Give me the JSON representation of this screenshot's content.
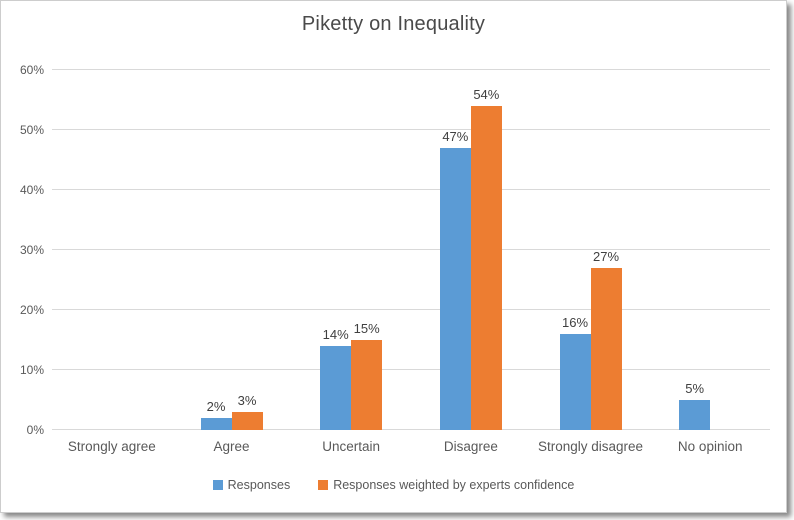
{
  "chart_data": {
    "type": "bar",
    "title": "Piketty on Inequality",
    "categories": [
      "Strongly agree",
      "Agree",
      "Uncertain",
      "Disagree",
      "Strongly disagree",
      "No opinion"
    ],
    "series": [
      {
        "name": "Responses",
        "color": "#5B9BD5",
        "values": [
          null,
          2,
          14,
          47,
          16,
          5
        ],
        "data_labels": [
          null,
          "2%",
          "14%",
          "47%",
          "16%",
          "5%"
        ]
      },
      {
        "name": "Responses weighted by experts confidence",
        "color": "#ED7D31",
        "values": [
          null,
          3,
          15,
          54,
          27,
          null
        ],
        "data_labels": [
          null,
          "3%",
          "15%",
          "54%",
          "27%",
          null
        ]
      }
    ],
    "y_axis": {
      "max": 60,
      "min": 0,
      "unit": "%",
      "ticks": [
        {
          "label": "0%",
          "value": 0
        },
        {
          "label": "10%",
          "value": 10
        },
        {
          "label": "20%",
          "value": 20
        },
        {
          "label": "30%",
          "value": 30
        },
        {
          "label": "40%",
          "value": 40
        },
        {
          "label": "50%",
          "value": 50
        },
        {
          "label": "60%",
          "value": 60
        }
      ]
    },
    "xlabel": "",
    "ylabel": "",
    "grid": true,
    "legend_position": "bottom",
    "colors": {
      "gridline": "#d9d9d9",
      "axis_text": "#595959",
      "data_label_text": "#404040",
      "title_text": "#4a4a4a"
    }
  }
}
